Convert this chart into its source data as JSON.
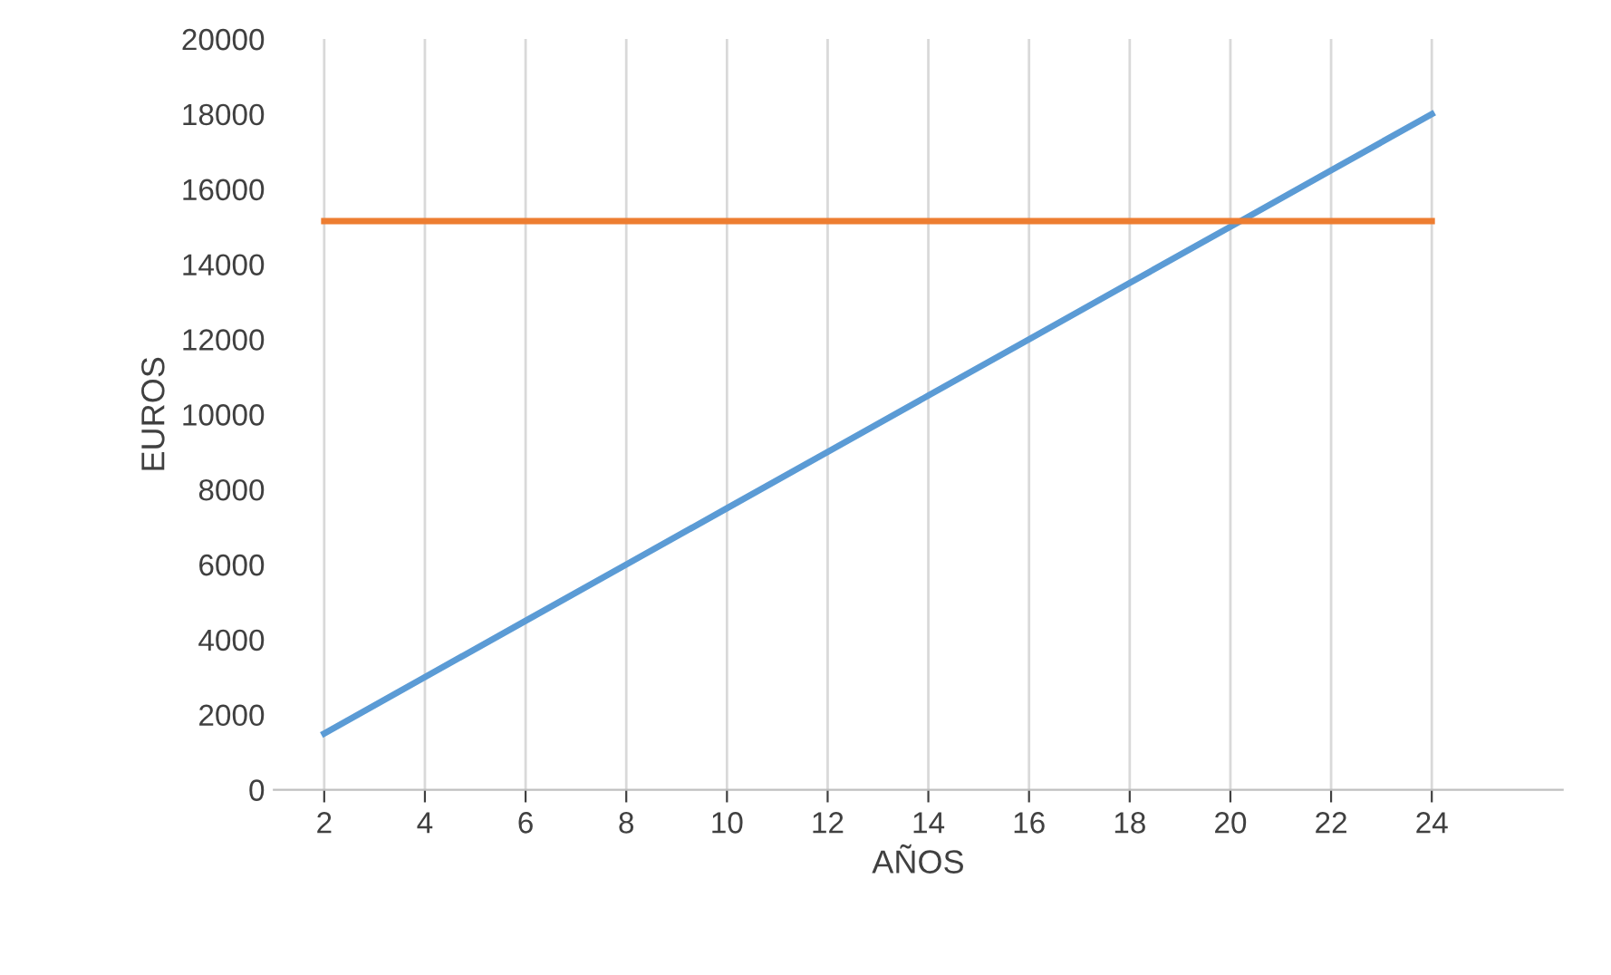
{
  "chart_data": {
    "type": "line",
    "xlabel": "AÑOS",
    "ylabel": "EUROS",
    "x": [
      2,
      4,
      6,
      8,
      10,
      12,
      14,
      16,
      18,
      20,
      22,
      24
    ],
    "series": [
      {
        "color": "#5b9bd5",
        "values": [
          1500,
          3000,
          4500,
          6000,
          7500,
          9000,
          10500,
          12000,
          13500,
          15000,
          16500,
          18000
        ]
      },
      {
        "color": "#ed7d31",
        "values": [
          15150,
          15150,
          15150,
          15150,
          15150,
          15150,
          15150,
          15150,
          15150,
          15150,
          15150,
          15150
        ]
      }
    ],
    "xlim": [
      1,
      26.6
    ],
    "xticks": [
      2,
      4,
      6,
      8,
      10,
      12,
      14,
      16,
      18,
      20,
      22,
      24
    ],
    "ylim": [
      0,
      20000
    ],
    "yticks": [
      0,
      2000,
      4000,
      6000,
      8000,
      10000,
      12000,
      14000,
      16000,
      18000,
      20000
    ],
    "grid": "x",
    "legend": false,
    "marker": "none",
    "line_style": "solid"
  }
}
